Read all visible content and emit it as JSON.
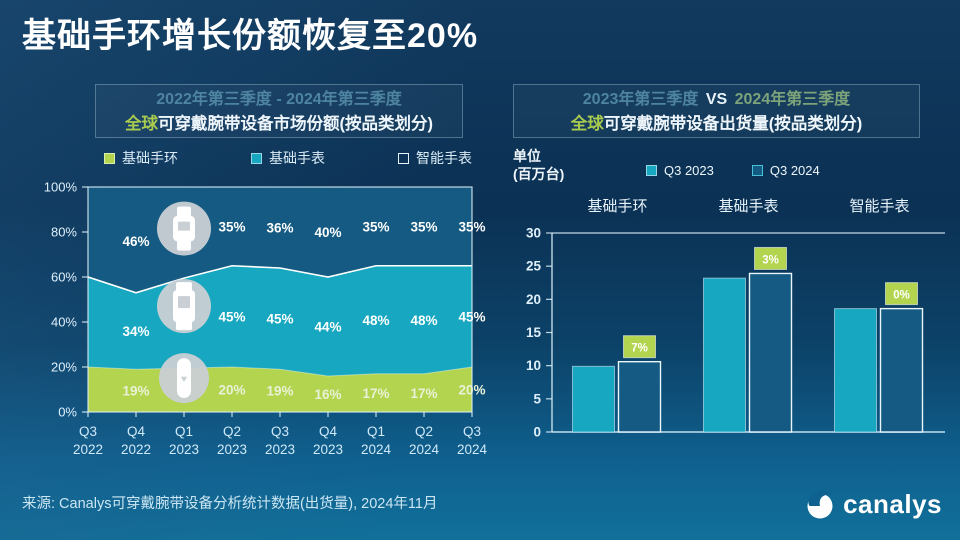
{
  "page": {
    "title": "基础手环增长份额恢复至20%",
    "source": "来源: Canalys可穿戴腕带设备分析统计数据(出货量), 2024年11月",
    "brand": "canalys"
  },
  "colors": {
    "accent_green": "#b3d44e",
    "accent_teal": "#18a7c0",
    "smartwatch_dark_blue": "#155a82",
    "muted_teal_text": "#4e84a0",
    "muted_green_text": "#7ca379",
    "badge_green": "#b3d44e"
  },
  "share_chart_header": {
    "line1": "2022年第三季度 - 2024年第三季度",
    "line2_green": "全球",
    "line2_rest": "可穿戴腕带设备市场份额(按品类划分)"
  },
  "ship_chart_header": {
    "line1_a": "2023年第三季度",
    "line1_vs": "VS",
    "line1_b": "2024年第三季度",
    "line2_green": "全球",
    "line2_rest": "可穿戴腕带设备出货量(按品类划分)",
    "unit_line1": "单位",
    "unit_line2": "(百万台)"
  },
  "chart_data": [
    {
      "type": "area",
      "stacked": true,
      "title": "全球可穿戴腕带设备市场份额(按品类划分)",
      "subtitle": "2022年第三季度 - 2024年第三季度",
      "x": [
        "Q3 2022",
        "Q4 2022",
        "Q1 2023",
        "Q2 2023",
        "Q3 2023",
        "Q4 2023",
        "Q1 2024",
        "Q2 2024",
        "Q3 2024"
      ],
      "ylim": [
        0,
        100
      ],
      "yticks": [
        0,
        20,
        40,
        60,
        80,
        100
      ],
      "ytick_suffix": "%",
      "grid": false,
      "legend_position": "top",
      "icon_column": 2,
      "series": [
        {
          "name": "基础手环",
          "color": "#b3d44e",
          "label_color": "#e9f2d6",
          "values": [
            20,
            19,
            19.5,
            20,
            19,
            16,
            17,
            17,
            20
          ],
          "labels": [
            null,
            "19%",
            null,
            "20%",
            "19%",
            "16%",
            "17%",
            "17%",
            "20%"
          ]
        },
        {
          "name": "基础手表",
          "color": "#18a7c0",
          "label_color": "#ffffff",
          "values": [
            40,
            34,
            40,
            45,
            45,
            44,
            48,
            48,
            45
          ],
          "labels": [
            null,
            "34%",
            null,
            "45%",
            "45%",
            "44%",
            "48%",
            "48%",
            "45%"
          ]
        },
        {
          "name": "智能手表",
          "color": "#155a82",
          "label_color": "#ffffff",
          "values": [
            40,
            46,
            40.5,
            35,
            36,
            40,
            35,
            35,
            35
          ],
          "labels": [
            null,
            "46%",
            null,
            "35%",
            "36%",
            "40%",
            "35%",
            "35%",
            "35%"
          ]
        }
      ]
    },
    {
      "type": "bar",
      "title": "全球可穿戴腕带设备出货量(按品类划分)",
      "subtitle": "2023年第三季度 VS 2024年第三季度",
      "ylabel": "单位(百万台)",
      "categories": [
        "基础手环",
        "基础手表",
        "智能手表"
      ],
      "ylim": [
        0,
        30
      ],
      "yticks": [
        0,
        5,
        10,
        15,
        20,
        25,
        30
      ],
      "legend_position": "top",
      "series": [
        {
          "name": "Q3 2023",
          "style": "fill",
          "color": "#18a7c0",
          "values": [
            9.9,
            23.2,
            18.6
          ]
        },
        {
          "name": "Q3 2024",
          "style": "outline",
          "color": "#155a82",
          "values": [
            10.6,
            23.9,
            18.6
          ]
        }
      ],
      "growth_labels": [
        "7%",
        "3%",
        "0%"
      ]
    }
  ]
}
